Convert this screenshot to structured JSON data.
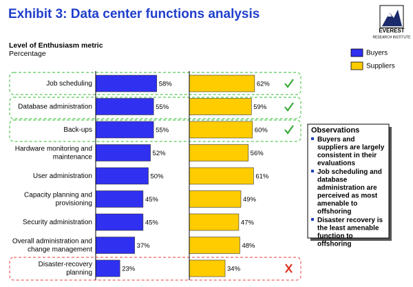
{
  "chart_data": {
    "type": "bar",
    "title": "Exhibit 3: Data center functions analysis",
    "subtitle": "Level of Enthusiasm metric",
    "unit_label": "Percentage",
    "categories": [
      "Job scheduling",
      "Database administration",
      "Back-ups",
      "Hardware monitoring and\nmaintenance",
      "User administration",
      "Capacity planning and\nprovisioning",
      "Security administration",
      "Overall administration and\nchange management",
      "Disaster-recovery\nplanning"
    ],
    "series": [
      {
        "name": "Buyers",
        "color": "#3030f0",
        "values": [
          58,
          55,
          55,
          52,
          50,
          45,
          45,
          37,
          23
        ],
        "value_labels": [
          "58%",
          "55%",
          "55%",
          "52%",
          "50%",
          "45%",
          "45%",
          "37%",
          "23%"
        ]
      },
      {
        "name": "Suppliers",
        "color": "#ffcc00",
        "values": [
          62,
          59,
          60,
          56,
          61,
          49,
          47,
          48,
          34
        ],
        "value_labels": [
          "62%",
          "59%",
          "60%",
          "56%",
          "61%",
          "49%",
          "47%",
          "48%",
          "34%"
        ]
      }
    ],
    "xlim": [
      0,
      100
    ],
    "legend": "right"
  },
  "observations": {
    "title": "Observations",
    "items": [
      "Buyers and suppliers are largely consistent in their evaluations",
      "Job scheduling and database administration are perceived as most amenable to offshoring",
      "Disaster recovery is the least amenable function to offshoring"
    ]
  },
  "logo": {
    "name": "EVEREST",
    "tagline": "RESEARCH INSTITUTE"
  }
}
